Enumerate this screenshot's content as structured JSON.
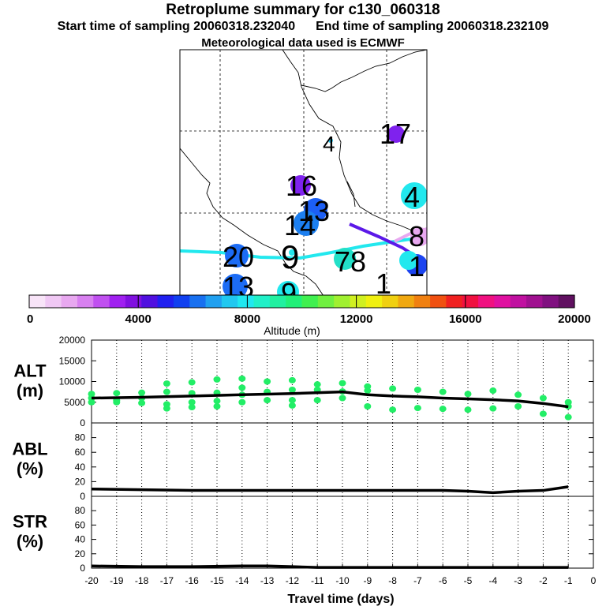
{
  "header": {
    "title": "Retroplume summary for c130_060318",
    "start_label": "Start time of sampling 20060318.232040",
    "end_label": "End time of sampling 20060318.232109",
    "met_label": "Meteorological data used is ECMWF"
  },
  "map": {
    "labels": [
      {
        "text": "17",
        "color": "#7f22ee"
      },
      {
        "text": "4",
        "color": "#22c8ee"
      },
      {
        "text": "16",
        "color": "#7f22ee"
      },
      {
        "text": "4",
        "color": "#22e8ee"
      },
      {
        "text": "13",
        "color": "#1c5ff5"
      },
      {
        "text": "14",
        "color": "#1c7ff0"
      },
      {
        "text": "8",
        "color": "#e8a8f0"
      },
      {
        "text": "1",
        "color": "#2f44f0"
      },
      {
        "text": "20",
        "color": "#1c6cf5"
      },
      {
        "text": "9",
        "color": "#22e8ee"
      },
      {
        "text": "78",
        "color": "#22e0c8"
      },
      {
        "text": "13",
        "color": "#1c6cf5"
      },
      {
        "text": "9",
        "color": "#22e8ee"
      },
      {
        "text": "1",
        "color": "#22e8ee"
      }
    ]
  },
  "colorbar": {
    "title": "Altitude (m)",
    "ticks": [
      "0",
      "4000",
      "8000",
      "12000",
      "16000",
      "20000"
    ],
    "min": 0,
    "max": 20000,
    "colors": [
      "#f8e4f8",
      "#f0c8f4",
      "#e8a8f0",
      "#d880f0",
      "#c050f0",
      "#a020f0",
      "#8010e0",
      "#5010e0",
      "#2020f0",
      "#1040f0",
      "#1870f0",
      "#20a0f0",
      "#20c8f0",
      "#20e8f0",
      "#20f0c8",
      "#20f0a0",
      "#20f078",
      "#40f050",
      "#70f040",
      "#a0f030",
      "#d0f020",
      "#f0f010",
      "#f0d010",
      "#f0a810",
      "#f08010",
      "#f05010",
      "#f02020",
      "#f01040",
      "#f01080",
      "#e010a0",
      "#c010a0",
      "#a01090",
      "#801080",
      "#601060"
    ]
  },
  "chart_data": [
    {
      "type": "scatter",
      "name": "ALT",
      "ylabel": "ALT\n(m)",
      "ylabel_lines": [
        "ALT",
        "(m)"
      ],
      "ylim": [
        0,
        20000
      ],
      "yticks": [
        "0",
        "5000",
        "10000",
        "15000",
        "20000"
      ],
      "xlim": [
        -20,
        0
      ],
      "points_x": [
        -20,
        -20,
        -20,
        -19,
        -19,
        -19,
        -18,
        -18,
        -18,
        -17,
        -17,
        -17,
        -17,
        -16,
        -16,
        -16,
        -16,
        -15,
        -15,
        -15,
        -15,
        -14,
        -14,
        -14,
        -14,
        -13,
        -13,
        -13,
        -12,
        -12,
        -12,
        -12,
        -11,
        -11,
        -11,
        -10,
        -10,
        -10,
        -9,
        -9,
        -9,
        -8,
        -8,
        -7,
        -7,
        -6,
        -6,
        -5,
        -5,
        -4,
        -4,
        -3,
        -3,
        -2,
        -2,
        -1,
        -1,
        -1
      ],
      "points_y": [
        7000,
        6000,
        5000,
        7200,
        5500,
        5000,
        7300,
        6000,
        4800,
        9500,
        7500,
        4500,
        3500,
        9800,
        7200,
        5000,
        3800,
        10500,
        7300,
        5300,
        4000,
        10700,
        8500,
        6800,
        5000,
        10000,
        7500,
        5500,
        10300,
        8000,
        5500,
        4200,
        9300,
        8000,
        5500,
        9600,
        7600,
        6000,
        8800,
        7800,
        4000,
        8300,
        3200,
        8000,
        3600,
        7500,
        3400,
        7000,
        3200,
        7800,
        3500,
        6800,
        4000,
        6000,
        2200,
        5000,
        4000,
        1400
      ],
      "color": "#22ee66",
      "mean_line_x": [
        -20,
        -18,
        -16,
        -14,
        -12,
        -10,
        -9,
        -8,
        -7,
        -6,
        -5,
        -4,
        -3,
        -2,
        -1
      ],
      "mean_line_y": [
        6000,
        6200,
        6500,
        6800,
        7100,
        7500,
        6800,
        6500,
        6300,
        6000,
        5800,
        5600,
        5300,
        4700,
        3900
      ]
    },
    {
      "type": "line",
      "name": "ABL",
      "ylabel_lines": [
        "ABL",
        "(%)"
      ],
      "ylim": [
        0,
        100
      ],
      "yticks": [
        "0",
        "20",
        "40",
        "60",
        "80"
      ],
      "xlim": [
        -20,
        0
      ],
      "x": [
        -20,
        -18,
        -16,
        -14,
        -12,
        -10,
        -8,
        -6,
        -5,
        -4,
        -3,
        -2,
        -1
      ],
      "y": [
        10,
        9,
        8,
        8,
        8,
        8,
        8,
        8,
        7,
        5,
        7,
        8,
        13
      ]
    },
    {
      "type": "line",
      "name": "STR",
      "ylabel_lines": [
        "STR",
        "(%)"
      ],
      "ylim": [
        0,
        100
      ],
      "yticks": [
        "0",
        "20",
        "40",
        "60",
        "80"
      ],
      "xlim": [
        -20,
        0
      ],
      "x": [
        -20,
        -18,
        -16,
        -14,
        -13,
        -12,
        -11,
        -10,
        -8,
        -6,
        -4,
        -2,
        -1
      ],
      "y": [
        3,
        2,
        2,
        3,
        3,
        2,
        1,
        1,
        1,
        1,
        1,
        1,
        1
      ],
      "xticks": [
        "-20",
        "-19",
        "-18",
        "-17",
        "-16",
        "-15",
        "-14",
        "-13",
        "-12",
        "-11",
        "-10",
        "-9",
        "-8",
        "-7",
        "-6",
        "-5",
        "-4",
        "-3",
        "-2",
        "-1",
        "0"
      ],
      "xlabel": "Travel time (days)"
    }
  ]
}
